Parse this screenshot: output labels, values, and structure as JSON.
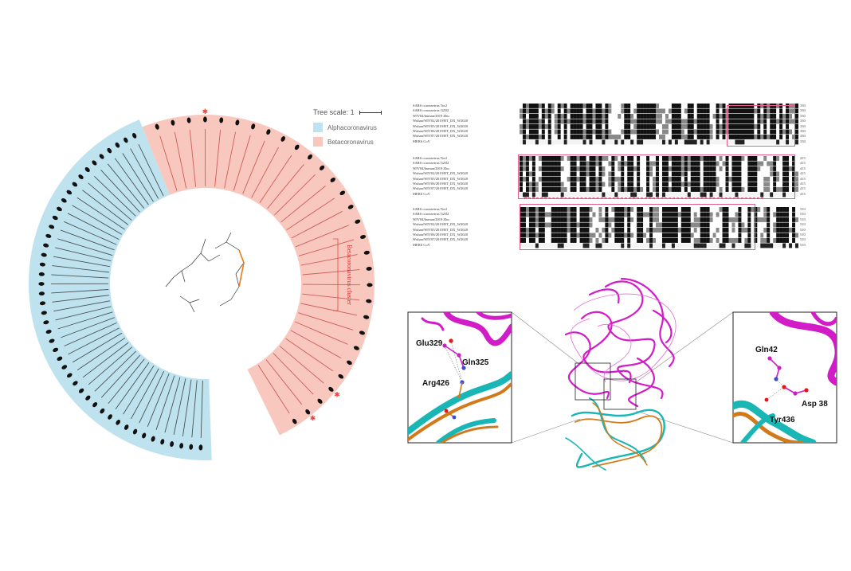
{
  "tree": {
    "scale_label": "Tree scale: 1",
    "legend": [
      {
        "label": "Alphacoronavirus",
        "color": "#bfe2ef"
      },
      {
        "label": "Betacoronavirus",
        "color": "#f8c7bd"
      }
    ],
    "clade_label": "Betacoronavirus cluster",
    "alpha_leaf_count": 46,
    "beta_leaf_count": 30,
    "highlight_color": "#ee4444"
  },
  "alignment": {
    "blocks": [
      {
        "sequences": [
          "SARS coronavirus Tor2",
          "SARS coronavirus GZ02",
          "WIV04/human/2019 Zhu",
          "Wuhan/WIV02/2019/BT_DX_W2020",
          "Wuhan/WIV05/2019/BT_DX_W2020",
          "Wuhan/WIV06/2019/BT_DX_W2020",
          "Wuhan/WIV07/2019/BT_DX_W2020",
          "MERS CoV"
        ],
        "end_numbers": [
          "330",
          "330",
          "330",
          "330",
          "330",
          "330",
          "330",
          "330"
        ]
      },
      {
        "sequences": [
          "SARS coronavirus Tor2",
          "SARS coronavirus GZ02",
          "WIV04/human/2019 Zhu",
          "Wuhan/WIV02/2019/BT_DX_W2020",
          "Wuhan/WIV05/2019/BT_DX_W2020",
          "Wuhan/WIV06/2019/BT_DX_W2020",
          "Wuhan/WIV07/2019/BT_DX_W2020",
          "MERS CoV"
        ],
        "end_numbers": [
          "415",
          "415",
          "415",
          "415",
          "415",
          "415",
          "415",
          "415"
        ]
      },
      {
        "sequences": [
          "SARS coronavirus Tor2",
          "SARS coronavirus GZ02",
          "WIV04/human/2019 Zhu",
          "Wuhan/WIV02/2019/BT_DX_W2020",
          "Wuhan/WIV05/2019/BT_DX_W2020",
          "Wuhan/WIV06/2019/BT_DX_W2020",
          "Wuhan/WIV07/2019/BT_DX_W2020",
          "MERS CoV"
        ],
        "end_numbers": [
          "510",
          "510",
          "510",
          "510",
          "510",
          "510",
          "510",
          "510"
        ]
      }
    ]
  },
  "structure": {
    "left_zoom": {
      "labels": [
        "Glu329",
        "Gln325",
        "Arg426"
      ]
    },
    "right_zoom": {
      "labels": [
        "Gln42",
        "Asp 38",
        "Tyr436"
      ]
    },
    "colors": {
      "receptor": "#d21cc8",
      "spike_a": "#19b6b6",
      "spike_b": "#d27a1a"
    }
  }
}
